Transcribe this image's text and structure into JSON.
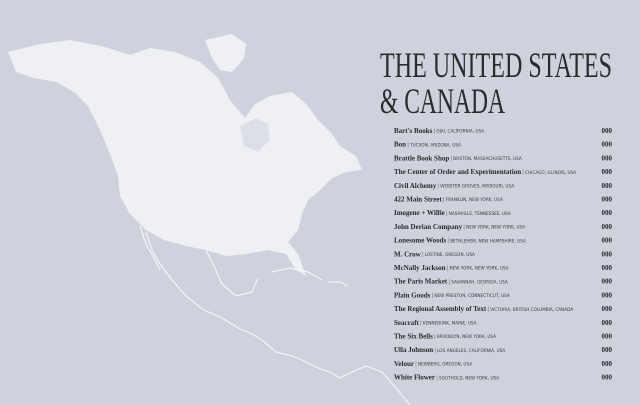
{
  "title": [
    "THE UNITED STATES",
    "& CANADA"
  ],
  "entries": [
    {
      "name": "Bart's Books",
      "location": "OJAI, CALIFORNIA, USA",
      "page": "000"
    },
    {
      "name": "Bon",
      "location": "TUCSON, ARIZONA, USA",
      "page": "000"
    },
    {
      "name": "Brattle Book Shop",
      "location": "BOSTON, MASSACHUSETTS, USA",
      "page": "000"
    },
    {
      "name": "The Center of Order and Experimentation",
      "location": "CHICAGO, ILLINOIS, USA",
      "page": "000"
    },
    {
      "name": "Civil Alchemy",
      "location": "WEBSTER GROVES, MISSOURI, USA",
      "page": "000"
    },
    {
      "name": "422 Main Street",
      "location": "FRANKLIN, NEW YORK, USA",
      "page": "000"
    },
    {
      "name": "Imogene + Willie",
      "location": "NASHVILLE, TENNESSEE, USA",
      "page": "000"
    },
    {
      "name": "John Derian Company",
      "location": "NEW YORK, NEW YORK, USA",
      "page": "000"
    },
    {
      "name": "Lonesome Woods",
      "location": "BETHLEHEM, NEW HAMPSHIRE, USA",
      "page": "000"
    },
    {
      "name": "M. Crow",
      "location": "LOSTINE, OREGON, USA",
      "page": "000"
    },
    {
      "name": "McNally Jackson",
      "location": "NEW YORK, NEW YORK, USA",
      "page": "000"
    },
    {
      "name": "The Paris Market",
      "location": "SAVANNAH, GEORGIA, USA",
      "page": "000"
    },
    {
      "name": "Plain Goods",
      "location": "NEW PRESTON, CONNECTICUT, USA",
      "page": "000"
    },
    {
      "name": "The Regional Assembly of Text",
      "location": "VICTORIA, BRITISH COLUMBIA, CANADA",
      "page": "000"
    },
    {
      "name": "Seacraft",
      "location": "KENNEBUNK, MAINE, USA",
      "page": "000"
    },
    {
      "name": "The Six Bells",
      "location": "BROOKLYN, NEW YORK, USA",
      "page": "000"
    },
    {
      "name": "Ulla Johnson",
      "location": "LOS ANGELES, CALIFORNIA, USA",
      "page": "000"
    },
    {
      "name": "Velour",
      "location": "NEWBERG, OREGON, USA",
      "page": "000"
    },
    {
      "name": "White Flower",
      "location": "SOUTHOLD, NEW YORK, USA",
      "page": "000"
    }
  ]
}
